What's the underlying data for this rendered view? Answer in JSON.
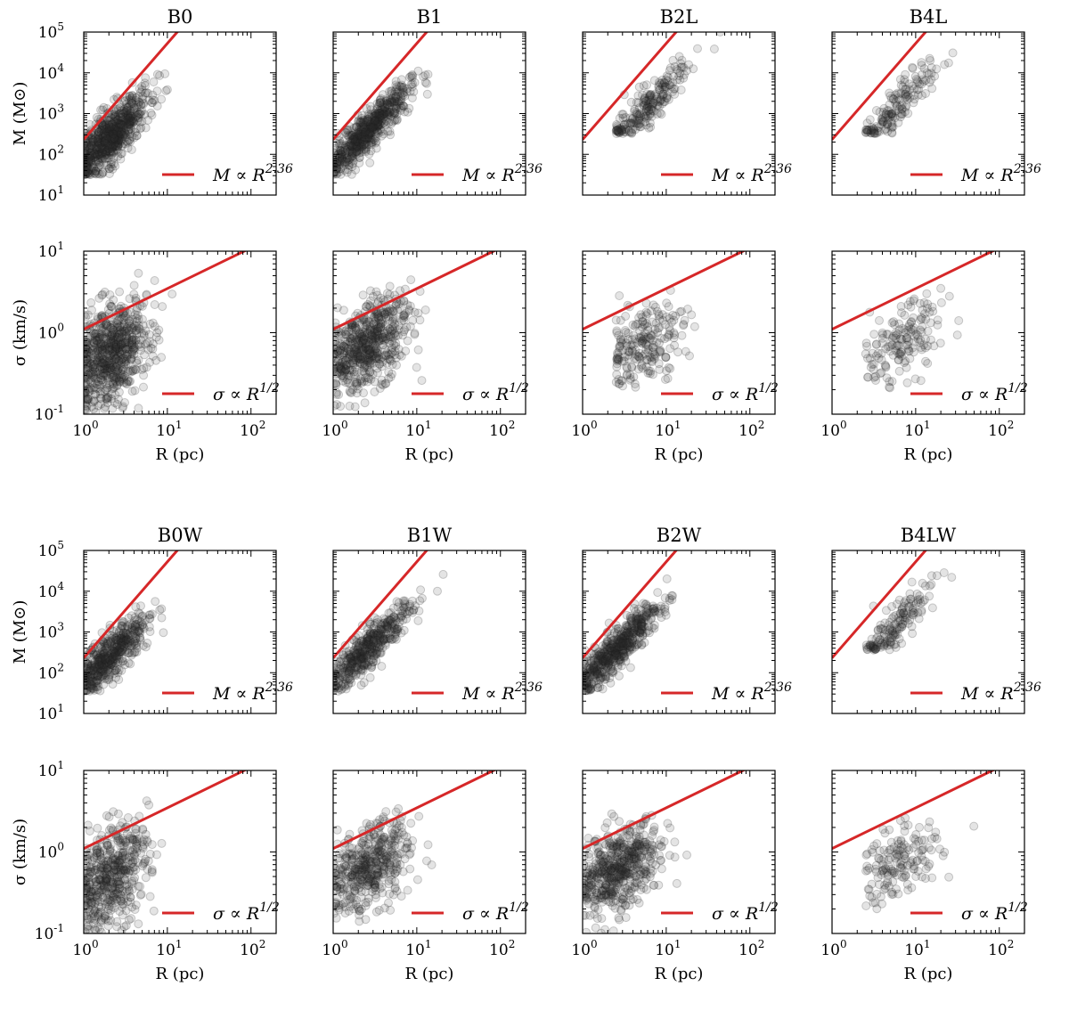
{
  "legend": {
    "mass_relation": "M ∝ R",
    "mass_exponent": "2.36",
    "sigma_relation": "σ ∝ R",
    "sigma_exponent": "1/2"
  },
  "axis_labels": {
    "x": "R (pc)",
    "mass_y": "M (M⊙)",
    "sigma_y": "σ (km/s)"
  },
  "colors": {
    "fit_line": "#d62728",
    "points": "#323232"
  },
  "chart_data": [
    {
      "type": "scatter",
      "title": "B0",
      "xlabel": "R (pc)",
      "ylabel": "M (M⊙)",
      "xscale": "log",
      "yscale": "log",
      "xlim": [
        1,
        200
      ],
      "ylim": [
        10,
        100000
      ],
      "x_ticks": [
        1,
        10,
        100
      ],
      "y_ticks": [
        10,
        100,
        1000,
        10000,
        100000
      ],
      "fit": {
        "label": "M ∝ R^2.36",
        "exponent": 2.36,
        "intercept_at_R1": 230
      },
      "cloud": {
        "count": 700,
        "x_log_center": 0.33,
        "x_log_spread": 0.22,
        "y_log_center": 2.45,
        "y_log_spread": 0.32,
        "slope": 1.9,
        "x_min_log": 0.0,
        "y_floor_log": 1.5
      },
      "legend_loc": "lower-right"
    },
    {
      "type": "scatter",
      "title": "B1",
      "xlabel": "R (pc)",
      "ylabel": "M (M⊙)",
      "xscale": "log",
      "yscale": "log",
      "xlim": [
        1,
        200
      ],
      "ylim": [
        10,
        100000
      ],
      "x_ticks": [
        1,
        10,
        100
      ],
      "y_ticks": [
        10,
        100,
        1000,
        10000,
        100000
      ],
      "fit": {
        "label": "M ∝ R^2.36",
        "exponent": 2.36,
        "intercept_at_R1": 230
      },
      "cloud": {
        "count": 600,
        "x_log_center": 0.42,
        "x_log_spread": 0.25,
        "y_log_center": 2.6,
        "y_log_spread": 0.25,
        "slope": 2.0,
        "x_min_log": 0.0,
        "y_floor_log": 1.5
      },
      "legend_loc": "lower-right"
    },
    {
      "type": "scatter",
      "title": "B2L",
      "xlabel": "R (pc)",
      "ylabel": "M (M⊙)",
      "xscale": "log",
      "yscale": "log",
      "xlim": [
        1,
        200
      ],
      "ylim": [
        10,
        100000
      ],
      "x_ticks": [
        1,
        10,
        100
      ],
      "y_ticks": [
        10,
        100,
        1000,
        10000,
        100000
      ],
      "fit": {
        "label": "M ∝ R^2.36",
        "exponent": 2.36,
        "intercept_at_R1": 230
      },
      "cloud": {
        "count": 220,
        "x_log_center": 0.75,
        "x_log_spread": 0.25,
        "y_log_center": 3.1,
        "y_log_spread": 0.25,
        "slope": 2.1,
        "x_min_log": 0.4,
        "y_floor_log": 2.5
      },
      "legend_loc": "lower-right"
    },
    {
      "type": "scatter",
      "title": "B4L",
      "xlabel": "R (pc)",
      "ylabel": "M (M⊙)",
      "xscale": "log",
      "yscale": "log",
      "xlim": [
        1,
        200
      ],
      "ylim": [
        10,
        100000
      ],
      "x_ticks": [
        1,
        10,
        100
      ],
      "y_ticks": [
        10,
        100,
        1000,
        10000,
        100000
      ],
      "fit": {
        "label": "M ∝ R^2.36",
        "exponent": 2.36,
        "intercept_at_R1": 230
      },
      "cloud": {
        "count": 160,
        "x_log_center": 0.8,
        "x_log_spread": 0.25,
        "y_log_center": 3.2,
        "y_log_spread": 0.25,
        "slope": 2.1,
        "x_min_log": 0.4,
        "y_floor_log": 2.5
      },
      "legend_loc": "lower-right"
    },
    {
      "type": "scatter",
      "title": "",
      "xlabel": "R (pc)",
      "ylabel": "σ (km/s)",
      "xscale": "log",
      "yscale": "log",
      "xlim": [
        1,
        200
      ],
      "ylim": [
        0.1,
        10
      ],
      "x_ticks": [
        1,
        10,
        100
      ],
      "y_ticks": [
        0.1,
        1,
        10
      ],
      "fit": {
        "label": "σ ∝ R^1/2",
        "exponent": 0.5,
        "intercept_at_R1": 1.1
      },
      "cloud": {
        "count": 700,
        "x_log_center": 0.33,
        "x_log_spread": 0.22,
        "y_log_center": -0.25,
        "y_log_spread": 0.3,
        "slope": 0.5,
        "x_min_log": 0.0,
        "y_floor_log": -1.0
      },
      "legend_loc": "lower-right"
    },
    {
      "type": "scatter",
      "title": "",
      "xlabel": "R (pc)",
      "ylabel": "σ (km/s)",
      "xscale": "log",
      "yscale": "log",
      "xlim": [
        1,
        200
      ],
      "ylim": [
        0.1,
        10
      ],
      "x_ticks": [
        1,
        10,
        100
      ],
      "y_ticks": [
        0.1,
        1,
        10
      ],
      "fit": {
        "label": "σ ∝ R^1/2",
        "exponent": 0.5,
        "intercept_at_R1": 1.1
      },
      "cloud": {
        "count": 600,
        "x_log_center": 0.42,
        "x_log_spread": 0.25,
        "y_log_center": -0.15,
        "y_log_spread": 0.25,
        "slope": 0.5,
        "x_min_log": 0.0,
        "y_floor_log": -1.0
      },
      "legend_loc": "lower-right"
    },
    {
      "type": "scatter",
      "title": "",
      "xlabel": "R (pc)",
      "ylabel": "σ (km/s)",
      "xscale": "log",
      "yscale": "log",
      "xlim": [
        1,
        200
      ],
      "ylim": [
        0.1,
        10
      ],
      "x_ticks": [
        1,
        10,
        100
      ],
      "y_ticks": [
        0.1,
        1,
        10
      ],
      "fit": {
        "label": "σ ∝ R^1/2",
        "exponent": 0.5,
        "intercept_at_R1": 1.1
      },
      "cloud": {
        "count": 220,
        "x_log_center": 0.75,
        "x_log_spread": 0.25,
        "y_log_center": -0.15,
        "y_log_spread": 0.25,
        "slope": 0.5,
        "x_min_log": 0.4,
        "y_floor_log": -0.7
      },
      "legend_loc": "lower-right"
    },
    {
      "type": "scatter",
      "title": "",
      "xlabel": "R (pc)",
      "ylabel": "σ (km/s)",
      "xscale": "log",
      "yscale": "log",
      "xlim": [
        1,
        200
      ],
      "ylim": [
        0.1,
        10
      ],
      "x_ticks": [
        1,
        10,
        100
      ],
      "y_ticks": [
        0.1,
        1,
        10
      ],
      "fit": {
        "label": "σ ∝ R^1/2",
        "exponent": 0.5,
        "intercept_at_R1": 1.1
      },
      "cloud": {
        "count": 160,
        "x_log_center": 0.8,
        "x_log_spread": 0.25,
        "y_log_center": -0.15,
        "y_log_spread": 0.22,
        "slope": 0.5,
        "x_min_log": 0.4,
        "y_floor_log": -0.7
      },
      "legend_loc": "lower-right"
    },
    {
      "type": "scatter",
      "title": "B0W",
      "xlabel": "R (pc)",
      "ylabel": "M (M⊙)",
      "xscale": "log",
      "yscale": "log",
      "xlim": [
        1,
        200
      ],
      "ylim": [
        10,
        100000
      ],
      "x_ticks": [
        1,
        10,
        100
      ],
      "y_ticks": [
        10,
        100,
        1000,
        10000,
        100000
      ],
      "fit": {
        "label": "M ∝ R^2.36",
        "exponent": 2.36,
        "intercept_at_R1": 230
      },
      "cloud": {
        "count": 500,
        "x_log_center": 0.33,
        "x_log_spread": 0.22,
        "y_log_center": 2.45,
        "y_log_spread": 0.3,
        "slope": 1.9,
        "x_min_log": 0.0,
        "y_floor_log": 1.55
      },
      "legend_loc": "lower-right"
    },
    {
      "type": "scatter",
      "title": "B1W",
      "xlabel": "R (pc)",
      "ylabel": "M (M⊙)",
      "xscale": "log",
      "yscale": "log",
      "xlim": [
        1,
        200
      ],
      "ylim": [
        10,
        100000
      ],
      "x_ticks": [
        1,
        10,
        100
      ],
      "y_ticks": [
        10,
        100,
        1000,
        10000,
        100000
      ],
      "fit": {
        "label": "M ∝ R^2.36",
        "exponent": 2.36,
        "intercept_at_R1": 230
      },
      "cloud": {
        "count": 450,
        "x_log_center": 0.42,
        "x_log_spread": 0.25,
        "y_log_center": 2.6,
        "y_log_spread": 0.25,
        "slope": 2.0,
        "x_min_log": 0.0,
        "y_floor_log": 1.55
      },
      "legend_loc": "lower-right"
    },
    {
      "type": "scatter",
      "title": "B2W",
      "xlabel": "R (pc)",
      "ylabel": "M (M⊙)",
      "xscale": "log",
      "yscale": "log",
      "xlim": [
        1,
        200
      ],
      "ylim": [
        10,
        100000
      ],
      "x_ticks": [
        1,
        10,
        100
      ],
      "y_ticks": [
        10,
        100,
        1000,
        10000,
        100000
      ],
      "fit": {
        "label": "M ∝ R^2.36",
        "exponent": 2.36,
        "intercept_at_R1": 230
      },
      "cloud": {
        "count": 550,
        "x_log_center": 0.42,
        "x_log_spread": 0.25,
        "y_log_center": 2.6,
        "y_log_spread": 0.25,
        "slope": 2.0,
        "x_min_log": 0.0,
        "y_floor_log": 1.55
      },
      "legend_loc": "lower-right"
    },
    {
      "type": "scatter",
      "title": "B4LW",
      "xlabel": "R (pc)",
      "ylabel": "M (M⊙)",
      "xscale": "log",
      "yscale": "log",
      "xlim": [
        1,
        200
      ],
      "ylim": [
        10,
        100000
      ],
      "x_ticks": [
        1,
        10,
        100
      ],
      "y_ticks": [
        10,
        100,
        1000,
        10000,
        100000
      ],
      "fit": {
        "label": "M ∝ R^2.36",
        "exponent": 2.36,
        "intercept_at_R1": 230
      },
      "cloud": {
        "count": 160,
        "x_log_center": 0.75,
        "x_log_spread": 0.25,
        "y_log_center": 3.1,
        "y_log_spread": 0.25,
        "slope": 2.1,
        "x_min_log": 0.4,
        "y_floor_log": 2.55
      },
      "legend_loc": "lower-right"
    },
    {
      "type": "scatter",
      "title": "",
      "xlabel": "R (pc)",
      "ylabel": "σ (km/s)",
      "xscale": "log",
      "yscale": "log",
      "xlim": [
        1,
        200
      ],
      "ylim": [
        0.1,
        10
      ],
      "x_ticks": [
        1,
        10,
        100
      ],
      "y_ticks": [
        0.1,
        1,
        10
      ],
      "fit": {
        "label": "σ ∝ R^1/2",
        "exponent": 0.5,
        "intercept_at_R1": 1.1
      },
      "cloud": {
        "count": 500,
        "x_log_center": 0.33,
        "x_log_spread": 0.22,
        "y_log_center": -0.3,
        "y_log_spread": 0.3,
        "slope": 0.5,
        "x_min_log": 0.0,
        "y_floor_log": -1.0
      },
      "legend_loc": "lower-right"
    },
    {
      "type": "scatter",
      "title": "",
      "xlabel": "R (pc)",
      "ylabel": "σ (km/s)",
      "xscale": "log",
      "yscale": "log",
      "xlim": [
        1,
        200
      ],
      "ylim": [
        0.1,
        10
      ],
      "x_ticks": [
        1,
        10,
        100
      ],
      "y_ticks": [
        0.1,
        1,
        10
      ],
      "fit": {
        "label": "σ ∝ R^1/2",
        "exponent": 0.5,
        "intercept_at_R1": 1.1
      },
      "cloud": {
        "count": 450,
        "x_log_center": 0.42,
        "x_log_spread": 0.25,
        "y_log_center": -0.2,
        "y_log_spread": 0.25,
        "slope": 0.5,
        "x_min_log": 0.0,
        "y_floor_log": -1.0
      },
      "legend_loc": "lower-right"
    },
    {
      "type": "scatter",
      "title": "",
      "xlabel": "R (pc)",
      "ylabel": "σ (km/s)",
      "xscale": "log",
      "yscale": "log",
      "xlim": [
        1,
        200
      ],
      "ylim": [
        0.1,
        10
      ],
      "x_ticks": [
        1,
        10,
        100
      ],
      "y_ticks": [
        0.1,
        1,
        10
      ],
      "fit": {
        "label": "σ ∝ R^1/2",
        "exponent": 0.5,
        "intercept_at_R1": 1.1
      },
      "cloud": {
        "count": 550,
        "x_log_center": 0.42,
        "x_log_spread": 0.25,
        "y_log_center": -0.2,
        "y_log_spread": 0.25,
        "slope": 0.5,
        "x_min_log": 0.0,
        "y_floor_log": -1.0
      },
      "legend_loc": "lower-right"
    },
    {
      "type": "scatter",
      "title": "",
      "xlabel": "R (pc)",
      "ylabel": "σ (km/s)",
      "xscale": "log",
      "yscale": "log",
      "xlim": [
        1,
        200
      ],
      "ylim": [
        0.1,
        10
      ],
      "x_ticks": [
        1,
        10,
        100
      ],
      "y_ticks": [
        0.1,
        1,
        10
      ],
      "fit": {
        "label": "σ ∝ R^1/2",
        "exponent": 0.5,
        "intercept_at_R1": 1.1
      },
      "cloud": {
        "count": 160,
        "x_log_center": 0.8,
        "x_log_spread": 0.25,
        "y_log_center": -0.15,
        "y_log_spread": 0.22,
        "slope": 0.5,
        "x_min_log": 0.4,
        "y_floor_log": -0.7
      },
      "legend_loc": "lower-right"
    }
  ]
}
